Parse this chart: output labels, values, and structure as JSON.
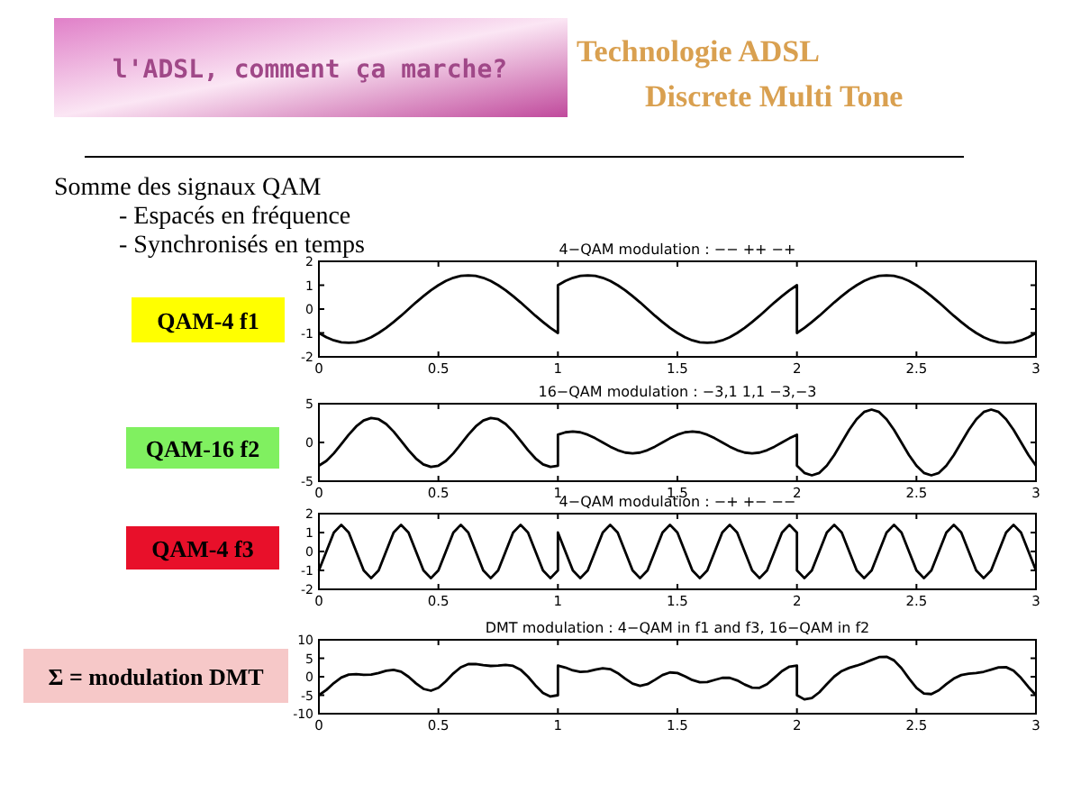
{
  "chart_data": [
    {
      "type": "other",
      "title": "Technologie ADSL",
      "subtitle": "Discrete Multi Tone",
      "annotations": [
        "l'ADSL, comment ça marche?",
        "Somme des signaux QAM",
        "- Espacés en fréquence",
        "- Synchronisés en temps"
      ]
    },
    {
      "type": "line",
      "title": "4−QAM modulation : −− ++ −+",
      "annotations": [
        "QAM-4   f1"
      ],
      "xlim": [
        0,
        3
      ],
      "xticks": [
        0,
        0.5,
        1,
        1.5,
        2,
        2.5,
        3
      ],
      "ylim": [
        -2,
        2
      ],
      "yticks": [
        -2,
        -1,
        0,
        1,
        2
      ],
      "color": "#000000",
      "x": [
        0,
        0.03125,
        0.0625,
        0.09375,
        0.125,
        0.15625,
        0.1875,
        0.21875,
        0.25,
        0.28125,
        0.3125,
        0.34375,
        0.375,
        0.40625,
        0.4375,
        0.46875,
        0.5,
        0.53125,
        0.5625,
        0.59375,
        0.625,
        0.65625,
        0.6875,
        0.71875,
        0.75,
        0.78125,
        0.8125,
        0.84375,
        0.875,
        0.90625,
        0.9375,
        0.96875,
        1,
        1,
        1.03125,
        1.0625,
        1.09375,
        1.125,
        1.15625,
        1.1875,
        1.21875,
        1.25,
        1.28125,
        1.3125,
        1.34375,
        1.375,
        1.40625,
        1.4375,
        1.46875,
        1.5,
        1.53125,
        1.5625,
        1.59375,
        1.625,
        1.65625,
        1.6875,
        1.71875,
        1.75,
        1.78125,
        1.8125,
        1.84375,
        1.875,
        1.90625,
        1.9375,
        1.96875,
        2,
        2,
        2.03125,
        2.0625,
        2.09375,
        2.125,
        2.15625,
        2.1875,
        2.21875,
        2.25,
        2.28125,
        2.3125,
        2.34375,
        2.375,
        2.40625,
        2.4375,
        2.46875,
        2.5,
        2.53125,
        2.5625,
        2.59375,
        2.625,
        2.65625,
        2.6875,
        2.71875,
        2.75,
        2.78125,
        2.8125,
        2.84375,
        2.875,
        2.90625,
        2.9375,
        2.96875,
        3
      ],
      "values": [
        -1,
        -1.18,
        -1.31,
        -1.39,
        -1.41,
        -1.39,
        -1.31,
        -1.18,
        -1,
        -0.79,
        -0.54,
        -0.28,
        0,
        0.28,
        0.54,
        0.79,
        1,
        1.18,
        1.31,
        1.39,
        1.41,
        1.39,
        1.31,
        1.18,
        1,
        0.79,
        0.54,
        0.28,
        0,
        -0.28,
        -0.54,
        -0.79,
        -1,
        1,
        1.18,
        1.31,
        1.39,
        1.41,
        1.39,
        1.31,
        1.18,
        1,
        0.79,
        0.54,
        0.28,
        0,
        -0.28,
        -0.54,
        -0.79,
        -1,
        -1.18,
        -1.31,
        -1.39,
        -1.41,
        -1.39,
        -1.31,
        -1.18,
        -1,
        -0.79,
        -0.54,
        -0.28,
        0,
        0.28,
        0.54,
        0.79,
        1,
        -1,
        -0.79,
        -0.54,
        -0.28,
        0,
        0.28,
        0.54,
        0.79,
        1,
        1.18,
        1.31,
        1.39,
        1.41,
        1.39,
        1.31,
        1.18,
        1,
        0.79,
        0.54,
        0.28,
        0,
        -0.28,
        -0.54,
        -0.79,
        -1,
        -1.18,
        -1.31,
        -1.39,
        -1.41,
        -1.39,
        -1.31,
        -1.18,
        -1
      ]
    },
    {
      "type": "line",
      "title": "16−QAM modulation : −3,1 1,1 −3,−3",
      "annotations": [
        "QAM-16 f2"
      ],
      "xlim": [
        0,
        3
      ],
      "xticks": [
        0,
        0.5,
        1,
        1.5,
        2,
        2.5,
        3
      ],
      "ylim": [
        -5,
        5
      ],
      "yticks": [
        -5,
        0,
        5
      ],
      "color": "#000000",
      "x": [
        0,
        0.03125,
        0.0625,
        0.09375,
        0.125,
        0.15625,
        0.1875,
        0.21875,
        0.25,
        0.28125,
        0.3125,
        0.34375,
        0.375,
        0.40625,
        0.4375,
        0.46875,
        0.5,
        0.53125,
        0.5625,
        0.59375,
        0.625,
        0.65625,
        0.6875,
        0.71875,
        0.75,
        0.78125,
        0.8125,
        0.84375,
        0.875,
        0.90625,
        0.9375,
        0.96875,
        1,
        1,
        1.03125,
        1.0625,
        1.09375,
        1.125,
        1.15625,
        1.1875,
        1.21875,
        1.25,
        1.28125,
        1.3125,
        1.34375,
        1.375,
        1.40625,
        1.4375,
        1.46875,
        1.5,
        1.53125,
        1.5625,
        1.59375,
        1.625,
        1.65625,
        1.6875,
        1.71875,
        1.75,
        1.78125,
        1.8125,
        1.84375,
        1.875,
        1.90625,
        1.9375,
        1.96875,
        2,
        2,
        2.03125,
        2.0625,
        2.09375,
        2.125,
        2.15625,
        2.1875,
        2.21875,
        2.25,
        2.28125,
        2.3125,
        2.34375,
        2.375,
        2.40625,
        2.4375,
        2.46875,
        2.5,
        2.53125,
        2.5625,
        2.59375,
        2.625,
        2.65625,
        2.6875,
        2.71875,
        2.75,
        2.78125,
        2.8125,
        2.84375,
        2.875,
        2.90625,
        2.9375,
        2.96875,
        3
      ],
      "values": [
        -3,
        -2.39,
        -1.41,
        -0.23,
        1,
        2.07,
        2.83,
        3.16,
        3,
        2.39,
        1.41,
        0.23,
        -1,
        -2.07,
        -2.83,
        -3.16,
        -3,
        -2.39,
        -1.41,
        -0.23,
        1,
        2.07,
        2.83,
        3.16,
        3,
        2.39,
        1.41,
        0.23,
        -1,
        -2.07,
        -2.83,
        -3.16,
        -3,
        1,
        1.31,
        1.41,
        1.31,
        1,
        0.54,
        0,
        -0.54,
        -1,
        -1.31,
        -1.41,
        -1.31,
        -1,
        -0.54,
        0,
        0.54,
        1,
        1.31,
        1.41,
        1.31,
        1,
        0.54,
        0,
        -0.54,
        -1,
        -1.31,
        -1.41,
        -1.31,
        -1,
        -0.54,
        0,
        0.54,
        1,
        -3,
        -3.93,
        -4.24,
        -3.93,
        -3,
        -1.62,
        0,
        1.62,
        3,
        3.93,
        4.24,
        3.93,
        3,
        1.62,
        0,
        -1.62,
        -3,
        -3.93,
        -4.24,
        -3.93,
        -3,
        -1.62,
        0,
        1.62,
        3,
        3.93,
        4.24,
        3.93,
        3,
        1.62,
        0,
        -1.62,
        -3
      ]
    },
    {
      "type": "line",
      "title": "4−QAM modulation : −+ +− −−",
      "annotations": [
        "QAM-4   f3"
      ],
      "xlim": [
        0,
        3
      ],
      "xticks": [
        0,
        0.5,
        1,
        1.5,
        2,
        2.5,
        3
      ],
      "ylim": [
        -2,
        2
      ],
      "yticks": [
        -2,
        -1,
        0,
        1,
        2
      ],
      "color": "#000000",
      "x": [
        0,
        0.03125,
        0.0625,
        0.09375,
        0.125,
        0.15625,
        0.1875,
        0.21875,
        0.25,
        0.28125,
        0.3125,
        0.34375,
        0.375,
        0.40625,
        0.4375,
        0.46875,
        0.5,
        0.53125,
        0.5625,
        0.59375,
        0.625,
        0.65625,
        0.6875,
        0.71875,
        0.75,
        0.78125,
        0.8125,
        0.84375,
        0.875,
        0.90625,
        0.9375,
        0.96875,
        1,
        1,
        1.03125,
        1.0625,
        1.09375,
        1.125,
        1.15625,
        1.1875,
        1.21875,
        1.25,
        1.28125,
        1.3125,
        1.34375,
        1.375,
        1.40625,
        1.4375,
        1.46875,
        1.5,
        1.53125,
        1.5625,
        1.59375,
        1.625,
        1.65625,
        1.6875,
        1.71875,
        1.75,
        1.78125,
        1.8125,
        1.84375,
        1.875,
        1.90625,
        1.9375,
        1.96875,
        2,
        2,
        2.03125,
        2.0625,
        2.09375,
        2.125,
        2.15625,
        2.1875,
        2.21875,
        2.25,
        2.28125,
        2.3125,
        2.34375,
        2.375,
        2.40625,
        2.4375,
        2.46875,
        2.5,
        2.53125,
        2.5625,
        2.59375,
        2.625,
        2.65625,
        2.6875,
        2.71875,
        2.75,
        2.78125,
        2.8125,
        2.84375,
        2.875,
        2.90625,
        2.9375,
        2.96875,
        3
      ],
      "values": [
        -1,
        0,
        1,
        1.41,
        1,
        0,
        -1,
        -1.41,
        -1,
        0,
        1,
        1.41,
        1,
        0,
        -1,
        -1.41,
        -1,
        0,
        1,
        1.41,
        1,
        0,
        -1,
        -1.41,
        -1,
        0,
        1,
        1.41,
        1,
        0,
        -1,
        -1.41,
        -1,
        1,
        0,
        -1,
        -1.41,
        -1,
        0,
        1,
        1.41,
        1,
        0,
        -1,
        -1.41,
        -1,
        0,
        1,
        1.41,
        1,
        0,
        -1,
        -1.41,
        -1,
        0,
        1,
        1.41,
        1,
        0,
        -1,
        -1.41,
        -1,
        0,
        1,
        1.41,
        1,
        -1,
        -1.41,
        -1,
        0,
        1,
        1.41,
        1,
        0,
        -1,
        -1.41,
        -1,
        0,
        1,
        1.41,
        1,
        0,
        -1,
        -1.41,
        -1,
        0,
        1,
        1.41,
        1,
        0,
        -1,
        -1.41,
        -1,
        0,
        1,
        1.41,
        1,
        0,
        -1
      ]
    },
    {
      "type": "line",
      "title": "DMT modulation : 4−QAM in f1 and f3, 16−QAM in f2",
      "annotations": [
        "Σ = modulation DMT"
      ],
      "xlim": [
        0,
        3
      ],
      "xticks": [
        0,
        0.5,
        1,
        1.5,
        2,
        2.5,
        3
      ],
      "ylim": [
        -10,
        10
      ],
      "yticks": [
        -10,
        -5,
        0,
        5,
        10
      ],
      "color": "#000000",
      "x": [
        0,
        0.03125,
        0.0625,
        0.09375,
        0.125,
        0.15625,
        0.1875,
        0.21875,
        0.25,
        0.28125,
        0.3125,
        0.34375,
        0.375,
        0.40625,
        0.4375,
        0.46875,
        0.5,
        0.53125,
        0.5625,
        0.59375,
        0.625,
        0.65625,
        0.6875,
        0.71875,
        0.75,
        0.78125,
        0.8125,
        0.84375,
        0.875,
        0.90625,
        0.9375,
        0.96875,
        1,
        1,
        1.03125,
        1.0625,
        1.09375,
        1.125,
        1.15625,
        1.1875,
        1.21875,
        1.25,
        1.28125,
        1.3125,
        1.34375,
        1.375,
        1.40625,
        1.4375,
        1.46875,
        1.5,
        1.53125,
        1.5625,
        1.59375,
        1.625,
        1.65625,
        1.6875,
        1.71875,
        1.75,
        1.78125,
        1.8125,
        1.84375,
        1.875,
        1.90625,
        1.9375,
        1.96875,
        2,
        2,
        2.03125,
        2.0625,
        2.09375,
        2.125,
        2.15625,
        2.1875,
        2.21875,
        2.25,
        2.28125,
        2.3125,
        2.34375,
        2.375,
        2.40625,
        2.4375,
        2.46875,
        2.5,
        2.53125,
        2.5625,
        2.59375,
        2.625,
        2.65625,
        2.6875,
        2.71875,
        2.75,
        2.78125,
        2.8125,
        2.84375,
        2.875,
        2.90625,
        2.9375,
        2.96875,
        3
      ],
      "values": [
        -5,
        -3.57,
        -1.72,
        -0.21,
        0.59,
        0.68,
        0.52,
        0.57,
        1,
        1.6,
        1.87,
        1.37,
        0,
        -1.8,
        -3.29,
        -3.78,
        -3,
        -1.21,
        0.9,
        2.57,
        3.41,
        3.46,
        3.14,
        2.93,
        3,
        3.18,
        2.95,
        1.92,
        0,
        -2.35,
        -4.37,
        -5.36,
        -5,
        3,
        2.49,
        1.72,
        1.29,
        1.41,
        1.93,
        2.31,
        2.05,
        1,
        -0.52,
        -1.87,
        -2.45,
        -2,
        -0.82,
        0.46,
        1.16,
        1,
        0.13,
        -0.9,
        -1.49,
        -1.41,
        -0.85,
        -0.31,
        -0.31,
        -1,
        -2.1,
        -2.95,
        -3,
        -2,
        -0.27,
        1.54,
        2.74,
        3,
        -5,
        -6.13,
        -5.78,
        -4.21,
        -2,
        0.06,
        1.54,
        2.41,
        3,
        3.7,
        4.55,
        5.32,
        5.41,
        4.42,
        2.31,
        -0.44,
        -3,
        -4.55,
        -4.7,
        -3.66,
        -2,
        -0.49,
        0.46,
        0.83,
        1,
        1.34,
        1.93,
        2.54,
        2.59,
        1.64,
        -0.31,
        -2.8,
        -5
      ]
    }
  ]
}
